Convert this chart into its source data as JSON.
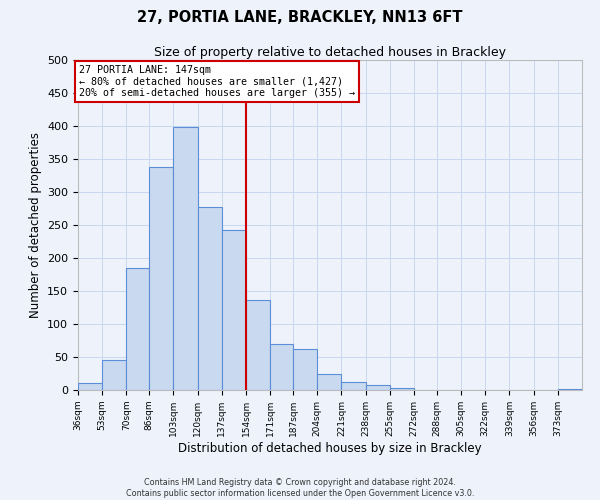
{
  "title": "27, PORTIA LANE, BRACKLEY, NN13 6FT",
  "subtitle": "Size of property relative to detached houses in Brackley",
  "xlabel": "Distribution of detached houses by size in Brackley",
  "ylabel": "Number of detached properties",
  "bin_labels": [
    "36sqm",
    "53sqm",
    "70sqm",
    "86sqm",
    "103sqm",
    "120sqm",
    "137sqm",
    "154sqm",
    "171sqm",
    "187sqm",
    "204sqm",
    "221sqm",
    "238sqm",
    "255sqm",
    "272sqm",
    "288sqm",
    "305sqm",
    "322sqm",
    "339sqm",
    "356sqm",
    "373sqm"
  ],
  "bin_edges": [
    36,
    53,
    70,
    86,
    103,
    120,
    137,
    154,
    171,
    187,
    204,
    221,
    238,
    255,
    272,
    288,
    305,
    322,
    339,
    356,
    373,
    390
  ],
  "bar_heights": [
    10,
    45,
    185,
    338,
    398,
    278,
    242,
    137,
    70,
    62,
    25,
    12,
    8,
    3,
    0,
    0,
    0,
    0,
    0,
    0,
    2
  ],
  "bar_color": "#c9d9f0",
  "bar_edge_color": "#5b8ed6",
  "vline_x": 154,
  "vline_color": "#cc0000",
  "annotation_title": "27 PORTIA LANE: 147sqm",
  "annotation_line1": "← 80% of detached houses are smaller (1,427)",
  "annotation_line2": "20% of semi-detached houses are larger (355) →",
  "annotation_box_edge": "#cc0000",
  "annotation_box_face": "#ffffff",
  "ylim": [
    0,
    500
  ],
  "yticks": [
    0,
    50,
    100,
    150,
    200,
    250,
    300,
    350,
    400,
    450,
    500
  ],
  "grid_color": "#c8d8f0",
  "background_color": "#eef3fb",
  "footer_line1": "Contains HM Land Registry data © Crown copyright and database right 2024.",
  "footer_line2": "Contains public sector information licensed under the Open Government Licence v3.0."
}
